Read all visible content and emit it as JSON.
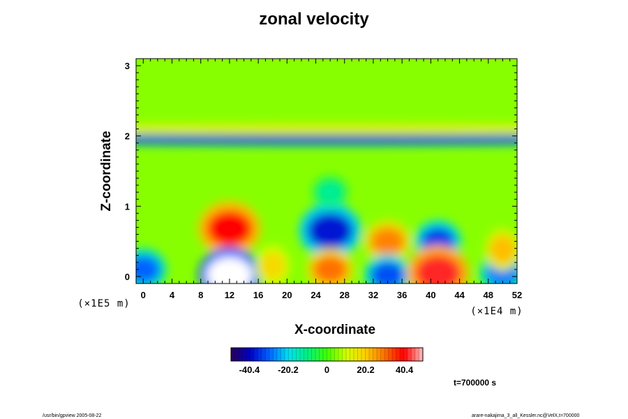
{
  "chart_data": {
    "type": "heatmap",
    "title": "zonal velocity",
    "xlabel": "X-coordinate",
    "ylabel": "Z-coordinate",
    "x_scale_note": "(×1E4 m)",
    "y_scale_note": "(×1E5 m)",
    "x_ticks": [
      "0",
      "4",
      "8",
      "12",
      "16",
      "20",
      "24",
      "28",
      "32",
      "36",
      "40",
      "44",
      "48",
      "52"
    ],
    "y_ticks": [
      "0",
      "1",
      "2",
      "3"
    ],
    "xlim": [
      -1,
      52
    ],
    "ylim": [
      -0.1,
      3.1
    ],
    "colorbar": {
      "range": [
        -50,
        50
      ],
      "tick_labels": [
        "-40.4",
        "-20.2",
        "0",
        "20.2",
        "40.4"
      ],
      "tick_values": [
        -40.4,
        -20.2,
        0,
        20.2,
        40.4
      ]
    },
    "background_value": 5,
    "features": [
      {
        "x": 12,
        "z": 0.68,
        "value": 40
      },
      {
        "x": 12,
        "z": 0.02,
        "value": -55
      },
      {
        "x": 26,
        "z": 0.65,
        "value": -38
      },
      {
        "x": 26,
        "z": 0.1,
        "value": 30
      },
      {
        "x": 34,
        "z": 0.5,
        "value": 28
      },
      {
        "x": 34,
        "z": 0.02,
        "value": -32
      },
      {
        "x": 41,
        "z": 0.5,
        "value": -34
      },
      {
        "x": 41,
        "z": 0.05,
        "value": 42
      },
      {
        "x": 0,
        "z": 0.1,
        "value": -30
      },
      {
        "x": 50,
        "z": 0.05,
        "value": -28
      },
      {
        "x": 50,
        "z": 0.38,
        "value": 22
      },
      {
        "x": 18,
        "z": 0.15,
        "value": 18
      },
      {
        "x": 26,
        "z": 1.95,
        "value": -40
      },
      {
        "x": 26,
        "z": 2.1,
        "value": 14
      },
      {
        "x": 26,
        "z": 1.2,
        "value": -12
      }
    ],
    "time_label": "t=700000 s"
  },
  "footer": {
    "left": "/usr/bin/gpview 2005-08-22",
    "right": "arare-nakajima_3_all_Kessler.nc@VelX,t=700000"
  },
  "colors": {
    "colormap": [
      "#2a0058",
      "#0000c8",
      "#0064ff",
      "#00e0f0",
      "#00f080",
      "#40ff00",
      "#d0ff00",
      "#ffd000",
      "#ff7000",
      "#ff0000",
      "#ffc0c0"
    ]
  }
}
